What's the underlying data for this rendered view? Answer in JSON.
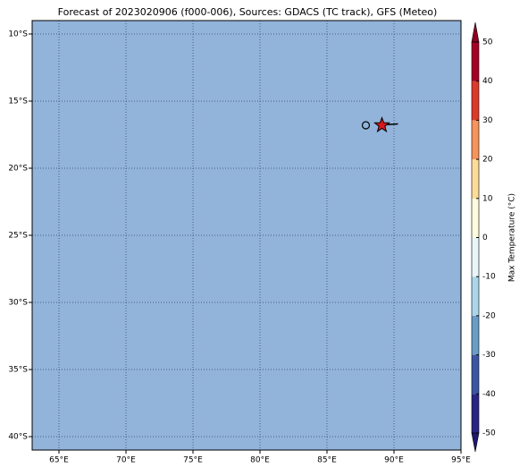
{
  "chart_data": {
    "type": "map",
    "title": "Forecast of 2023020906 (f000-006), Sources: GDACS (TC track), GFS (Meteo)",
    "xlim": [
      63,
      95
    ],
    "ylim": [
      -41,
      -9
    ],
    "xticks": [
      {
        "value": 65,
        "label": "65°E"
      },
      {
        "value": 70,
        "label": "70°E"
      },
      {
        "value": 75,
        "label": "75°E"
      },
      {
        "value": 80,
        "label": "80°E"
      },
      {
        "value": 85,
        "label": "85°E"
      },
      {
        "value": 90,
        "label": "90°E"
      },
      {
        "value": 95,
        "label": "95°E"
      }
    ],
    "yticks": [
      {
        "value": -10,
        "label": "10°S"
      },
      {
        "value": -15,
        "label": "15°S"
      },
      {
        "value": -20,
        "label": "20°S"
      },
      {
        "value": -25,
        "label": "25°S"
      },
      {
        "value": -30,
        "label": "30°S"
      },
      {
        "value": -35,
        "label": "35°S"
      },
      {
        "value": -40,
        "label": "40°S"
      }
    ],
    "grid": true,
    "background": "#92b4da",
    "track": {
      "x": [
        88.8,
        90.3
      ],
      "y": [
        -16.8,
        -16.7
      ],
      "color": "#000000"
    },
    "past_position": {
      "x": [
        87.9
      ],
      "y": [
        -16.8
      ]
    },
    "current_position": {
      "x": [
        89.1
      ],
      "y": [
        -16.8
      ],
      "color": "#d7191c"
    },
    "colorbar": {
      "label": "Max Temperature (°C)",
      "lim": [
        -50,
        50
      ],
      "ticks": [
        -50,
        -40,
        -30,
        -20,
        -10,
        0,
        10,
        20,
        30,
        40,
        50
      ],
      "levels": [
        -50,
        -40,
        -30,
        -20,
        -10,
        0,
        10,
        20,
        30,
        40,
        50
      ],
      "colors": [
        "#2a2583",
        "#3b55a3",
        "#6a9cc8",
        "#abd6e9",
        "#e8f6f8",
        "#fefbdf",
        "#fddc9a",
        "#f7935c",
        "#dc3b2c",
        "#a50026"
      ],
      "extend_colors": [
        "#1f1a6e",
        "#8e0021"
      ]
    }
  }
}
